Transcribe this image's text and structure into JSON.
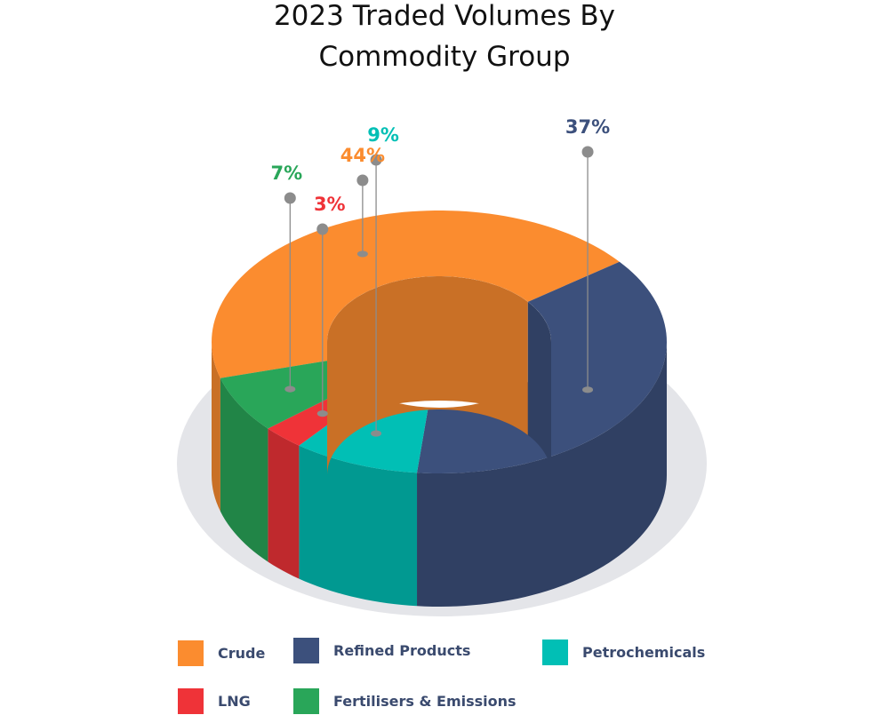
{
  "chart_data": {
    "type": "pie",
    "variant": "3d-donut",
    "title_lines": [
      "2023 Traded Volumes By",
      "Commodity Group"
    ],
    "series": [
      {
        "name": "Crude",
        "value": 44,
        "label": "44%",
        "color": "#fb8c2f"
      },
      {
        "name": "Refined Products",
        "value": 37,
        "label": "37%",
        "color": "#3c507c"
      },
      {
        "name": "Petrochemicals",
        "value": 9,
        "label": "9%",
        "color": "#01bfb5"
      },
      {
        "name": "LNG",
        "value": 3,
        "label": "3%",
        "color": "#ef3338"
      },
      {
        "name": "Fertilisers & Emissions",
        "value": 7,
        "label": "7%",
        "color": "#29a659"
      }
    ],
    "legend_placement": "bottom"
  }
}
